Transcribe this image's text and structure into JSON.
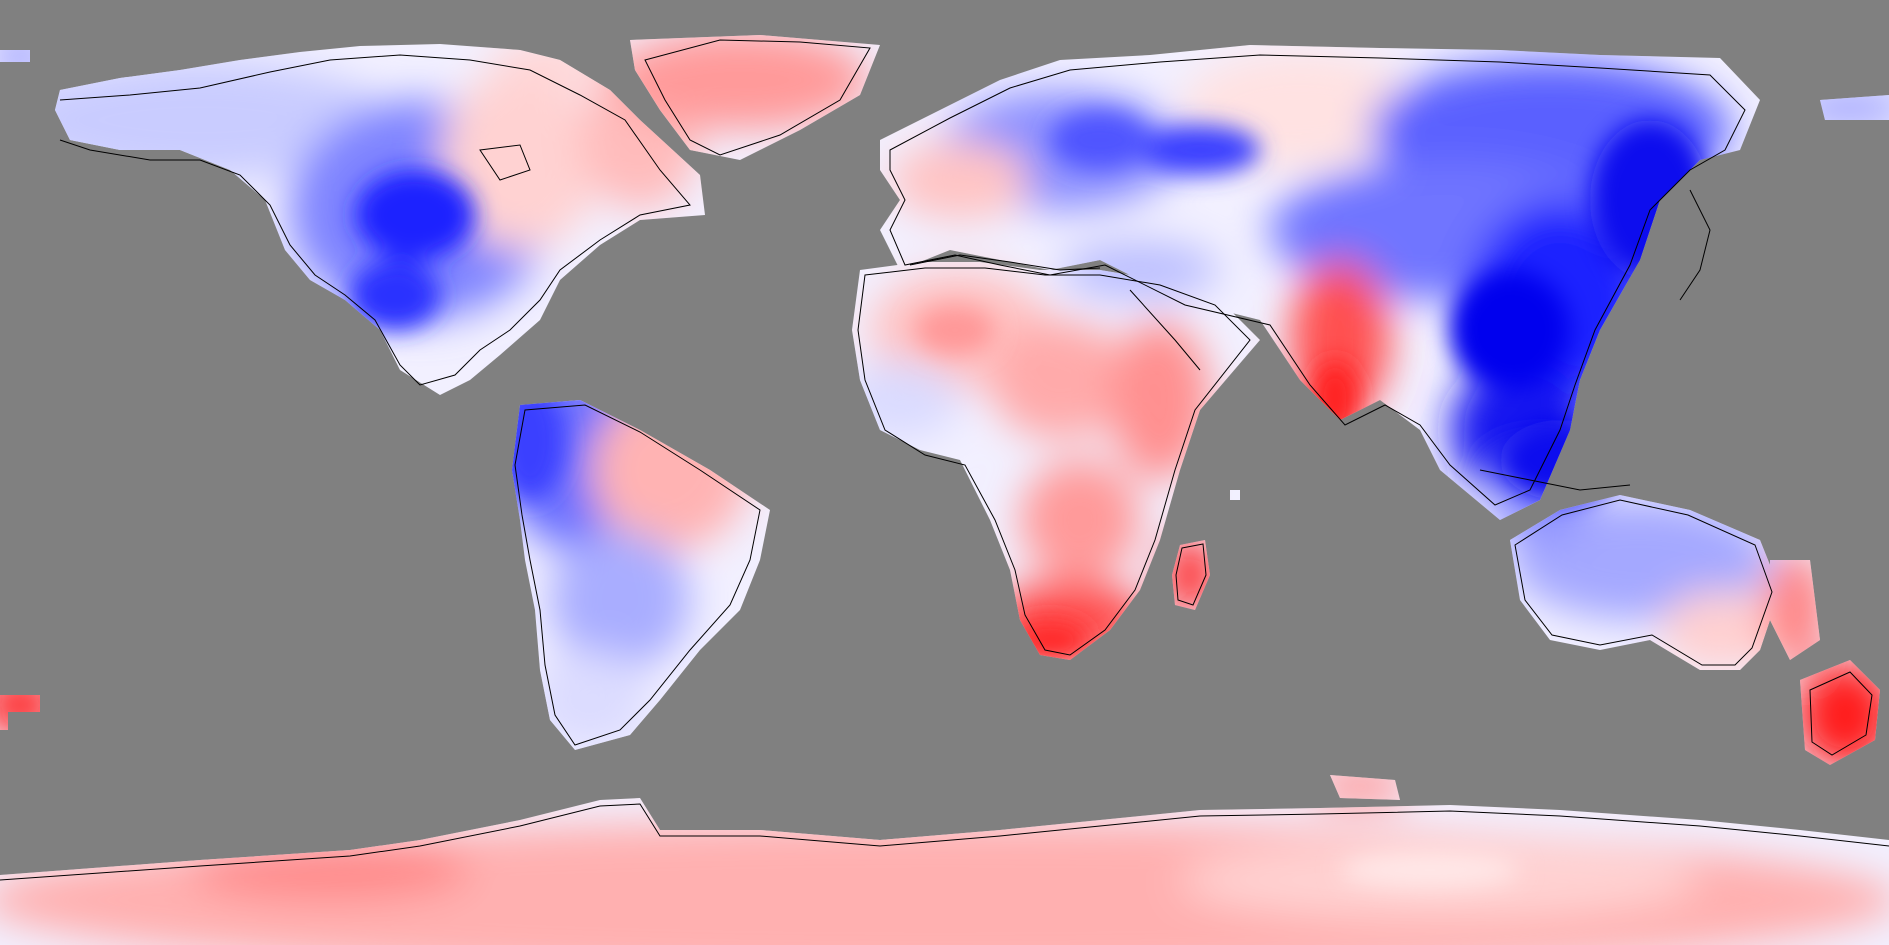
{
  "map": {
    "projection": "equirectangular",
    "longitude_range": [
      -180,
      180
    ],
    "latitude_range": [
      -90,
      90
    ],
    "background_color": "#808080",
    "coastline_color": "#000000",
    "colormap": {
      "negative": "#0000ee",
      "neutral": "#ffffff",
      "positive": "#ff2020"
    },
    "regions": [
      {
        "id": "alaska-canada-west",
        "sign": "negative",
        "level": 2
      },
      {
        "id": "north-america-central",
        "sign": "negative",
        "level": 5
      },
      {
        "id": "north-america-east",
        "sign": "positive",
        "level": 2
      },
      {
        "id": "greenland",
        "sign": "positive",
        "level": 3
      },
      {
        "id": "south-america-west",
        "sign": "negative",
        "level": 4
      },
      {
        "id": "south-america-east",
        "sign": "positive",
        "level": 2
      },
      {
        "id": "europe-north",
        "sign": "negative",
        "level": 4
      },
      {
        "id": "russia-siberia",
        "sign": "negative",
        "level": 3
      },
      {
        "id": "east-asia",
        "sign": "negative",
        "level": 5
      },
      {
        "id": "southeast-asia",
        "sign": "negative",
        "level": 6
      },
      {
        "id": "india",
        "sign": "positive",
        "level": 4
      },
      {
        "id": "north-africa",
        "sign": "positive",
        "level": 2
      },
      {
        "id": "east-africa",
        "sign": "positive",
        "level": 3
      },
      {
        "id": "south-africa",
        "sign": "positive",
        "level": 5
      },
      {
        "id": "madagascar",
        "sign": "positive",
        "level": 6
      },
      {
        "id": "australia",
        "sign": "negative",
        "level": 2
      },
      {
        "id": "new-zealand",
        "sign": "positive",
        "level": 6
      },
      {
        "id": "antarctica",
        "sign": "positive",
        "level": 2
      }
    ]
  }
}
